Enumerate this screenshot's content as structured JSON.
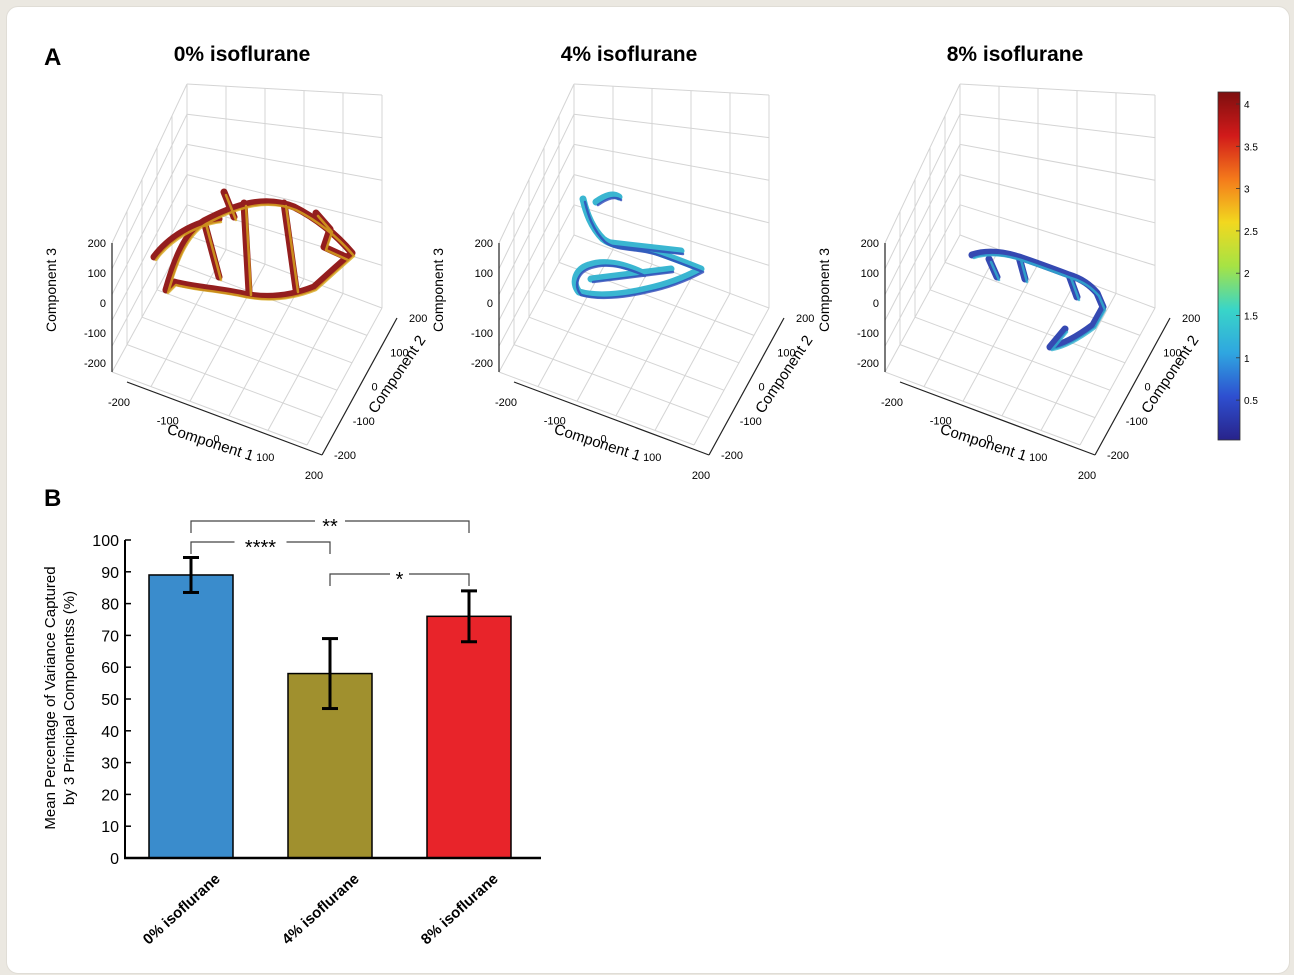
{
  "panel_a": {
    "label": "A",
    "plots": [
      {
        "title": "0% isoflurane",
        "zlabel": "Component 3",
        "xlabel": "Component 1",
        "ylabel": "Component 2",
        "z_ticks": [
          "200",
          "100",
          "0",
          "-100",
          "-200"
        ],
        "x_ticks": [
          "-200",
          "-100",
          "0",
          "100",
          "200"
        ],
        "y_ticks": [
          "200",
          "100",
          "0",
          "-100",
          "-200"
        ],
        "trajectory_color": "#8e1212"
      },
      {
        "title": "4% isoflurane",
        "zlabel": "Component 3",
        "xlabel": "Component 1",
        "ylabel": "Component 2",
        "z_ticks": [
          "200",
          "100",
          "0",
          "-100",
          "-200"
        ],
        "x_ticks": [
          "-200",
          "-100",
          "0",
          "100",
          "200"
        ],
        "y_ticks": [
          "200",
          "100",
          "0",
          "-100",
          "-200"
        ],
        "trajectory_color": "#2fb2cf"
      },
      {
        "title": "8% isoflurane",
        "zlabel": "Component 3",
        "xlabel": "Component 1",
        "ylabel": "Component 2",
        "z_ticks": [
          "200",
          "100",
          "0",
          "-100",
          "-200"
        ],
        "x_ticks": [
          "-200",
          "-100",
          "0",
          "100",
          "200"
        ],
        "y_ticks": [
          "200",
          "100",
          "0",
          "-100",
          "-200"
        ],
        "trajectory_color": "#2a3fae"
      }
    ],
    "colorbar": {
      "ticks": [
        "4",
        "3.5",
        "3",
        "2.5",
        "2",
        "1.5",
        "1",
        "0.5"
      ],
      "colors": [
        "#28238a",
        "#2e4fd0",
        "#2fa6e0",
        "#39d5c8",
        "#a6e344",
        "#f2d81f",
        "#f47a1b",
        "#d11a1a",
        "#7e0f0f"
      ]
    }
  },
  "panel_b": {
    "label": "B"
  },
  "chart_data": {
    "type": "bar",
    "categories": [
      "0% isoflurane",
      "4% isoflurane",
      "8% isoflurane"
    ],
    "values": [
      89,
      58,
      76
    ],
    "errors": [
      5.5,
      11,
      8
    ],
    "colors": [
      "#3a8ccc",
      "#a0902e",
      "#e8242a"
    ],
    "ylabel_line1": "Mean Percentage of Variance Captured",
    "ylabel_line2": "by 3 Principal Componentss (%)",
    "ylim": [
      0,
      100
    ],
    "yticks": [
      0,
      10,
      20,
      30,
      40,
      50,
      60,
      70,
      80,
      90,
      100
    ],
    "significance": [
      {
        "from": 0,
        "to": 2,
        "label": "**"
      },
      {
        "from": 0,
        "to": 1,
        "label": "****"
      },
      {
        "from": 1,
        "to": 2,
        "label": "*"
      }
    ]
  }
}
